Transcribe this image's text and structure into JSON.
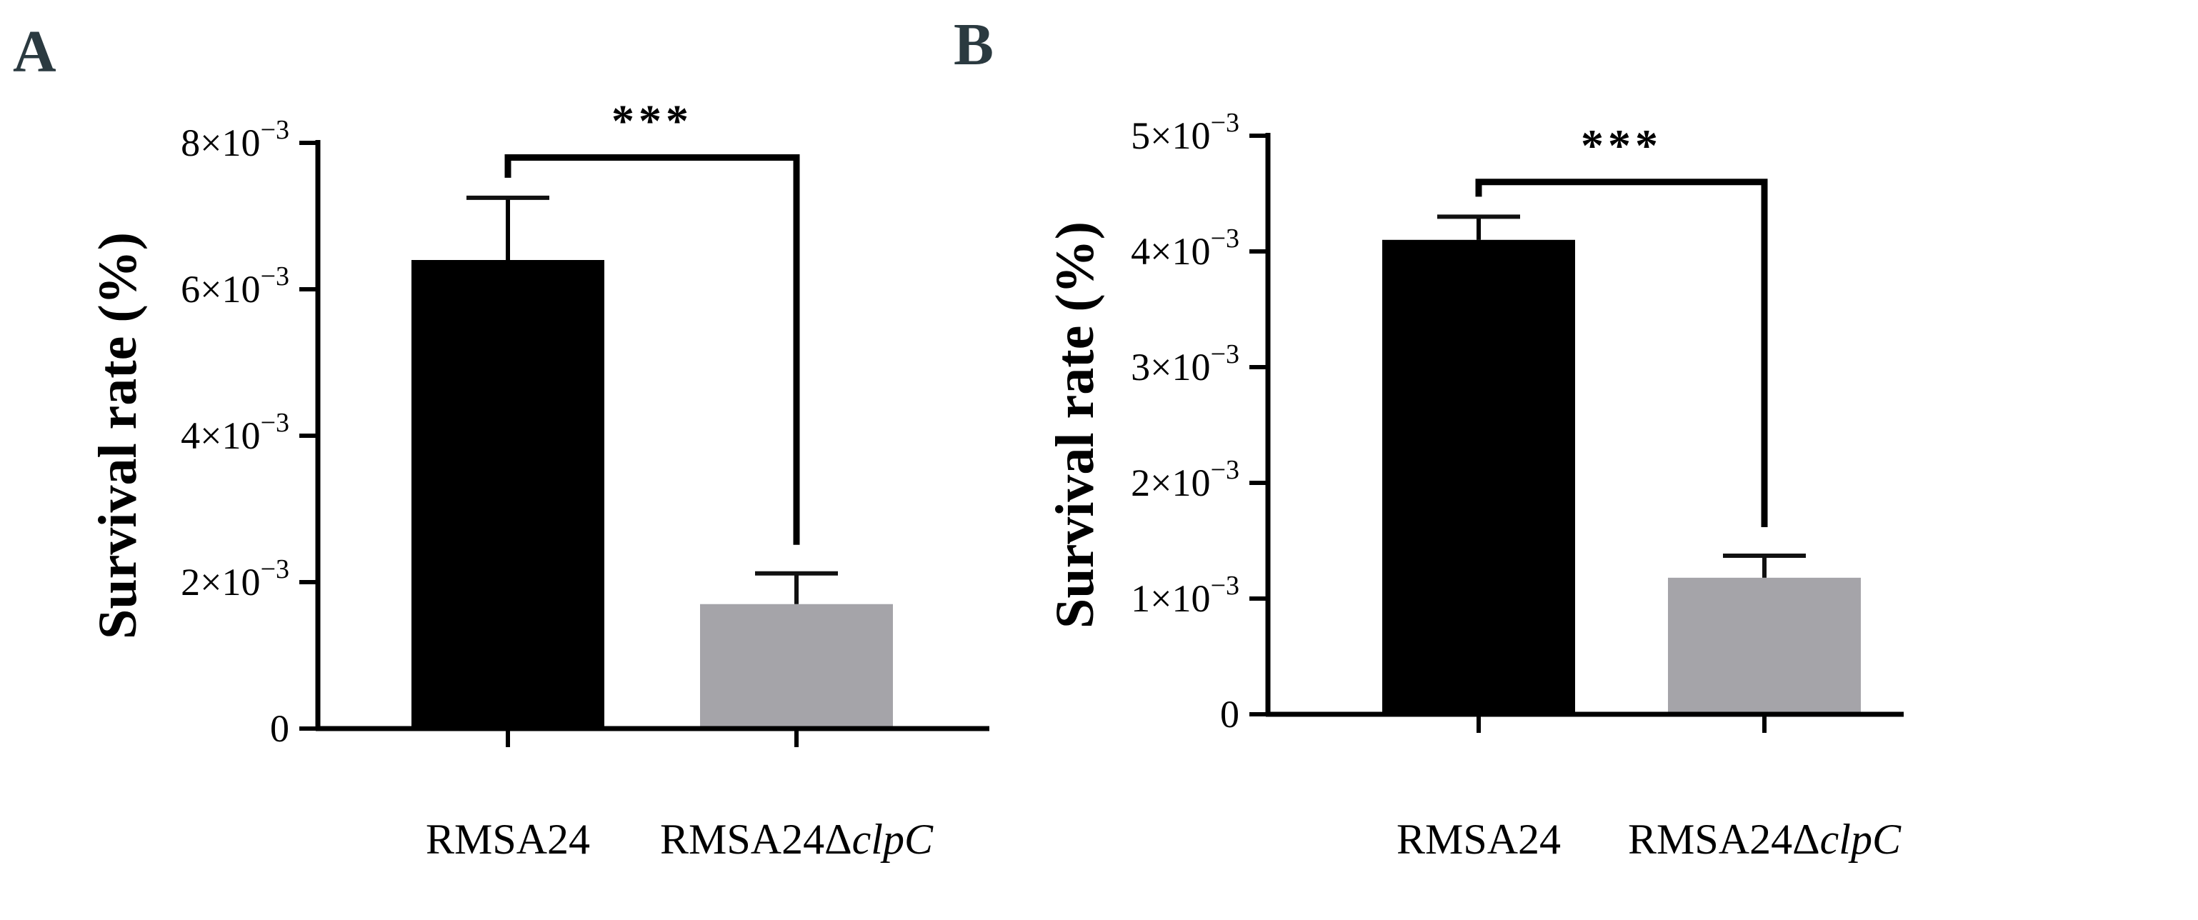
{
  "chart_data": [
    {
      "panel": "A",
      "type": "bar",
      "title": "",
      "xlabel": "",
      "ylabel": "Survival rate (%)",
      "ylim": [
        0,
        0.008
      ],
      "yticks": [
        {
          "value": 0,
          "label": "0"
        },
        {
          "value": 0.002,
          "base": "2×10",
          "exp": "−3"
        },
        {
          "value": 0.004,
          "base": "4×10",
          "exp": "−3"
        },
        {
          "value": 0.006,
          "base": "6×10",
          "exp": "−3"
        },
        {
          "value": 0.008,
          "base": "8×10",
          "exp": "−3"
        }
      ],
      "categories": [
        {
          "base": "RMSA24",
          "italic": ""
        },
        {
          "base": "RMSA24Δ",
          "italic": "clpC"
        }
      ],
      "values": [
        0.0064,
        0.0017
      ],
      "errors": [
        0.00085,
        0.00042
      ],
      "colors": [
        "#000000",
        "#a5a4a9"
      ],
      "significance": {
        "label": "***",
        "between": [
          0,
          1
        ],
        "y": 0.0078
      }
    },
    {
      "panel": "B",
      "type": "bar",
      "title": "",
      "xlabel": "",
      "ylabel": "Survival rate (%)",
      "ylim": [
        0,
        0.005
      ],
      "yticks": [
        {
          "value": 0,
          "label": "0"
        },
        {
          "value": 0.001,
          "base": "1×10",
          "exp": "−3"
        },
        {
          "value": 0.002,
          "base": "2×10",
          "exp": "−3"
        },
        {
          "value": 0.003,
          "base": "3×10",
          "exp": "−3"
        },
        {
          "value": 0.004,
          "base": "4×10",
          "exp": "−3"
        },
        {
          "value": 0.005,
          "base": "5×10",
          "exp": "−3"
        }
      ],
      "categories": [
        {
          "base": "RMSA24",
          "italic": ""
        },
        {
          "base": "RMSA24Δ",
          "italic": "clpC"
        }
      ],
      "values": [
        0.0041,
        0.00118
      ],
      "errors": [
        0.0002,
        0.00019
      ],
      "colors": [
        "#000000",
        "#a5a4a9"
      ],
      "significance": {
        "label": "***",
        "between": [
          0,
          1
        ],
        "y": 0.0046
      }
    }
  ]
}
